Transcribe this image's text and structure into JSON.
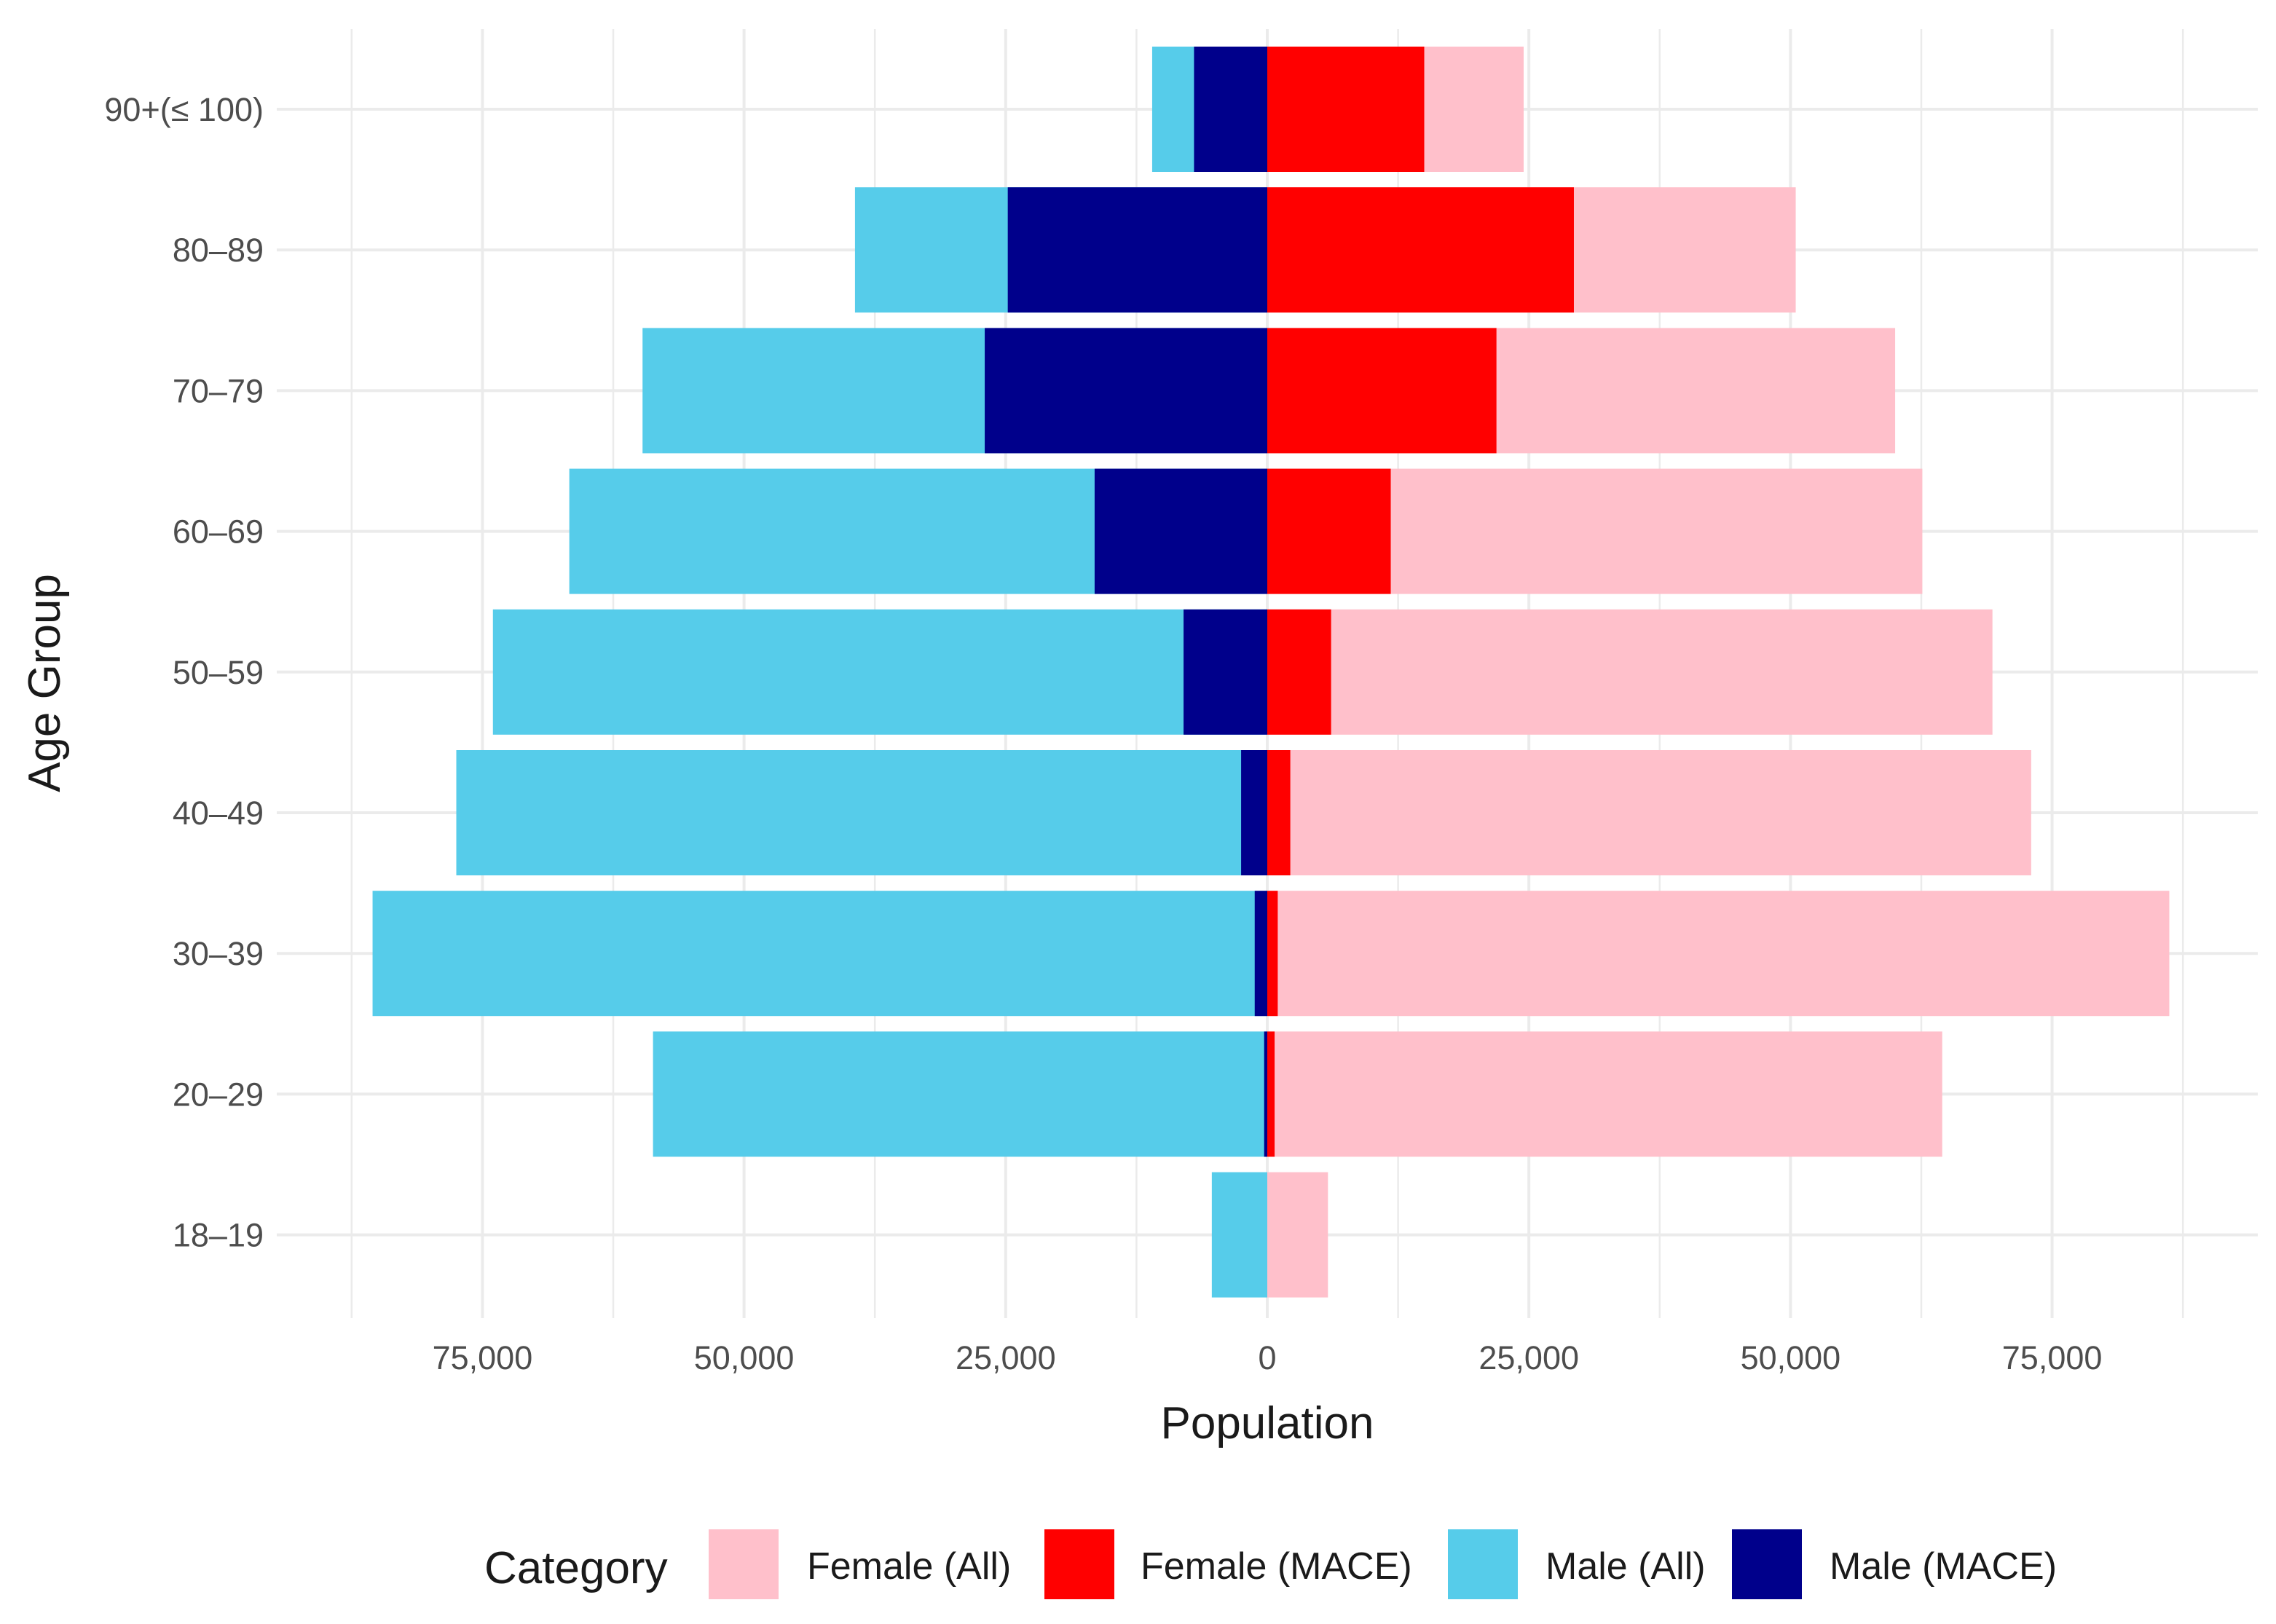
{
  "chart_data": {
    "type": "bar",
    "subtype": "population-pyramid",
    "title": "",
    "xlabel": "Population",
    "ylabel": "Age Group",
    "categories": [
      "18–19",
      "20–29",
      "30–39",
      "40–49",
      "50–59",
      "60–69",
      "70–79",
      "80–89",
      "90+(≤ 100)"
    ],
    "xlim": [
      -87000,
      87000
    ],
    "x_ticks": [
      -75000,
      -50000,
      -25000,
      0,
      25000,
      50000,
      75000
    ],
    "x_tick_labels": [
      "75,000",
      "50,000",
      "25,000",
      "0",
      "25,000",
      "50,000",
      "75,000"
    ],
    "grid": true,
    "legend_position": "bottom",
    "legend_title": "Category",
    "series": [
      {
        "name": "Female (All)",
        "color": "#FFC0CB",
        "side": "right",
        "values": [
          5800,
          64500,
          86200,
          73000,
          69300,
          62600,
          60000,
          50500,
          24500
        ]
      },
      {
        "name": "Female (MACE)",
        "color": "#FF0000",
        "side": "right",
        "values": [
          0,
          700,
          1000,
          2200,
          6100,
          11800,
          21900,
          29300,
          15000
        ]
      },
      {
        "name": "Male (All)",
        "color": "#56CCEA",
        "side": "left",
        "values": [
          5300,
          58700,
          85500,
          77500,
          74000,
          66700,
          59700,
          39400,
          11000
        ]
      },
      {
        "name": "Male (MACE)",
        "color": "#00008B",
        "side": "left",
        "values": [
          0,
          300,
          1200,
          2500,
          8000,
          16500,
          27000,
          24800,
          7000
        ]
      }
    ]
  }
}
